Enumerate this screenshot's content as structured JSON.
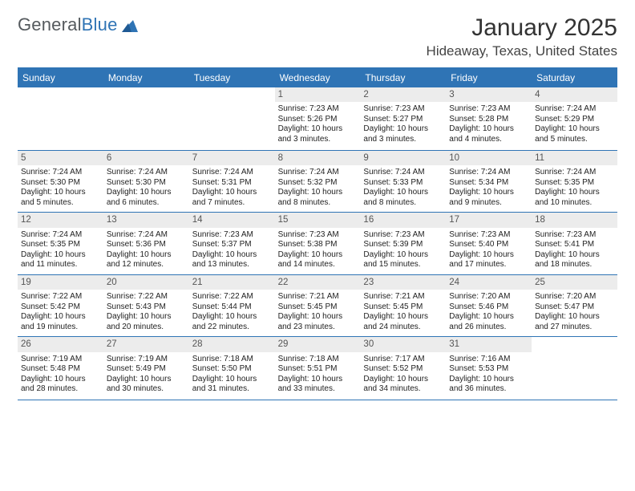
{
  "brand": {
    "part1": "General",
    "part2": "Blue"
  },
  "title": "January 2025",
  "location": "Hideaway, Texas, United States",
  "accent_color": "#2f74b5",
  "day_headers": [
    "Sunday",
    "Monday",
    "Tuesday",
    "Wednesday",
    "Thursday",
    "Friday",
    "Saturday"
  ],
  "weeks": [
    [
      null,
      null,
      null,
      {
        "n": "1",
        "sr": "Sunrise: 7:23 AM",
        "ss": "Sunset: 5:26 PM",
        "dl": "Daylight: 10 hours and 3 minutes."
      },
      {
        "n": "2",
        "sr": "Sunrise: 7:23 AM",
        "ss": "Sunset: 5:27 PM",
        "dl": "Daylight: 10 hours and 3 minutes."
      },
      {
        "n": "3",
        "sr": "Sunrise: 7:23 AM",
        "ss": "Sunset: 5:28 PM",
        "dl": "Daylight: 10 hours and 4 minutes."
      },
      {
        "n": "4",
        "sr": "Sunrise: 7:24 AM",
        "ss": "Sunset: 5:29 PM",
        "dl": "Daylight: 10 hours and 5 minutes."
      }
    ],
    [
      {
        "n": "5",
        "sr": "Sunrise: 7:24 AM",
        "ss": "Sunset: 5:30 PM",
        "dl": "Daylight: 10 hours and 5 minutes."
      },
      {
        "n": "6",
        "sr": "Sunrise: 7:24 AM",
        "ss": "Sunset: 5:30 PM",
        "dl": "Daylight: 10 hours and 6 minutes."
      },
      {
        "n": "7",
        "sr": "Sunrise: 7:24 AM",
        "ss": "Sunset: 5:31 PM",
        "dl": "Daylight: 10 hours and 7 minutes."
      },
      {
        "n": "8",
        "sr": "Sunrise: 7:24 AM",
        "ss": "Sunset: 5:32 PM",
        "dl": "Daylight: 10 hours and 8 minutes."
      },
      {
        "n": "9",
        "sr": "Sunrise: 7:24 AM",
        "ss": "Sunset: 5:33 PM",
        "dl": "Daylight: 10 hours and 8 minutes."
      },
      {
        "n": "10",
        "sr": "Sunrise: 7:24 AM",
        "ss": "Sunset: 5:34 PM",
        "dl": "Daylight: 10 hours and 9 minutes."
      },
      {
        "n": "11",
        "sr": "Sunrise: 7:24 AM",
        "ss": "Sunset: 5:35 PM",
        "dl": "Daylight: 10 hours and 10 minutes."
      }
    ],
    [
      {
        "n": "12",
        "sr": "Sunrise: 7:24 AM",
        "ss": "Sunset: 5:35 PM",
        "dl": "Daylight: 10 hours and 11 minutes."
      },
      {
        "n": "13",
        "sr": "Sunrise: 7:24 AM",
        "ss": "Sunset: 5:36 PM",
        "dl": "Daylight: 10 hours and 12 minutes."
      },
      {
        "n": "14",
        "sr": "Sunrise: 7:23 AM",
        "ss": "Sunset: 5:37 PM",
        "dl": "Daylight: 10 hours and 13 minutes."
      },
      {
        "n": "15",
        "sr": "Sunrise: 7:23 AM",
        "ss": "Sunset: 5:38 PM",
        "dl": "Daylight: 10 hours and 14 minutes."
      },
      {
        "n": "16",
        "sr": "Sunrise: 7:23 AM",
        "ss": "Sunset: 5:39 PM",
        "dl": "Daylight: 10 hours and 15 minutes."
      },
      {
        "n": "17",
        "sr": "Sunrise: 7:23 AM",
        "ss": "Sunset: 5:40 PM",
        "dl": "Daylight: 10 hours and 17 minutes."
      },
      {
        "n": "18",
        "sr": "Sunrise: 7:23 AM",
        "ss": "Sunset: 5:41 PM",
        "dl": "Daylight: 10 hours and 18 minutes."
      }
    ],
    [
      {
        "n": "19",
        "sr": "Sunrise: 7:22 AM",
        "ss": "Sunset: 5:42 PM",
        "dl": "Daylight: 10 hours and 19 minutes."
      },
      {
        "n": "20",
        "sr": "Sunrise: 7:22 AM",
        "ss": "Sunset: 5:43 PM",
        "dl": "Daylight: 10 hours and 20 minutes."
      },
      {
        "n": "21",
        "sr": "Sunrise: 7:22 AM",
        "ss": "Sunset: 5:44 PM",
        "dl": "Daylight: 10 hours and 22 minutes."
      },
      {
        "n": "22",
        "sr": "Sunrise: 7:21 AM",
        "ss": "Sunset: 5:45 PM",
        "dl": "Daylight: 10 hours and 23 minutes."
      },
      {
        "n": "23",
        "sr": "Sunrise: 7:21 AM",
        "ss": "Sunset: 5:45 PM",
        "dl": "Daylight: 10 hours and 24 minutes."
      },
      {
        "n": "24",
        "sr": "Sunrise: 7:20 AM",
        "ss": "Sunset: 5:46 PM",
        "dl": "Daylight: 10 hours and 26 minutes."
      },
      {
        "n": "25",
        "sr": "Sunrise: 7:20 AM",
        "ss": "Sunset: 5:47 PM",
        "dl": "Daylight: 10 hours and 27 minutes."
      }
    ],
    [
      {
        "n": "26",
        "sr": "Sunrise: 7:19 AM",
        "ss": "Sunset: 5:48 PM",
        "dl": "Daylight: 10 hours and 28 minutes."
      },
      {
        "n": "27",
        "sr": "Sunrise: 7:19 AM",
        "ss": "Sunset: 5:49 PM",
        "dl": "Daylight: 10 hours and 30 minutes."
      },
      {
        "n": "28",
        "sr": "Sunrise: 7:18 AM",
        "ss": "Sunset: 5:50 PM",
        "dl": "Daylight: 10 hours and 31 minutes."
      },
      {
        "n": "29",
        "sr": "Sunrise: 7:18 AM",
        "ss": "Sunset: 5:51 PM",
        "dl": "Daylight: 10 hours and 33 minutes."
      },
      {
        "n": "30",
        "sr": "Sunrise: 7:17 AM",
        "ss": "Sunset: 5:52 PM",
        "dl": "Daylight: 10 hours and 34 minutes."
      },
      {
        "n": "31",
        "sr": "Sunrise: 7:16 AM",
        "ss": "Sunset: 5:53 PM",
        "dl": "Daylight: 10 hours and 36 minutes."
      },
      null
    ]
  ]
}
